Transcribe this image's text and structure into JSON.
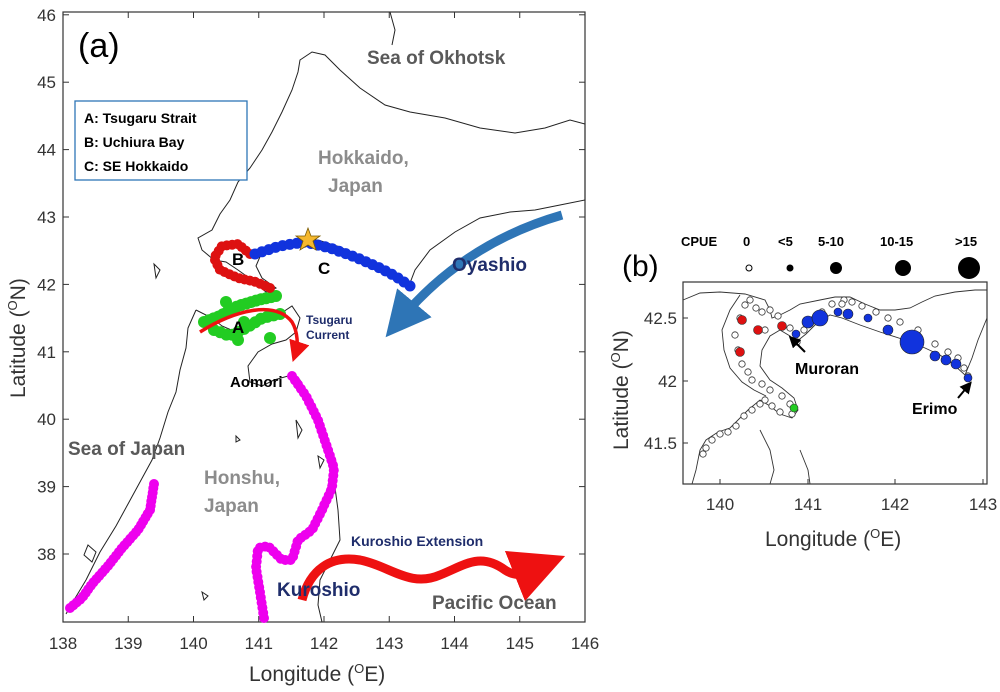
{
  "panel_a": {
    "panel_label": "(a)",
    "legend": {
      "a": "A: Tsugaru Strait",
      "b": "B: Uchiura Bay",
      "c": "C: SE Hokkaido"
    },
    "labels": {
      "sea_okhotsk": "Sea of Okhotsk",
      "hokkaido_1": "Hokkaido,",
      "hokkaido_2": "Japan",
      "oyashio": "Oyashio",
      "tsugaru_1": "Tsugaru",
      "tsugaru_2": "Current",
      "aomori": "Aomori",
      "sea_japan": "Sea of Japan",
      "honshu_1": "Honshu,",
      "honshu_2": "Japan",
      "kuroshio_ext": "Kuroshio Extension",
      "kuroshio": "Kuroshio",
      "pacific": "Pacific Ocean",
      "region_a": "A",
      "region_b": "B",
      "region_c": "C"
    },
    "xlabel": "Longitude (",
    "xlabel_sup": "O",
    "xlabel_end": "E)",
    "ylabel": "Latitude (",
    "ylabel_sup": "O",
    "ylabel_end": "N)",
    "x_ticks": [
      "138",
      "139",
      "140",
      "141",
      "142",
      "143",
      "144",
      "145",
      "146"
    ],
    "y_ticks": [
      "38",
      "39",
      "40",
      "41",
      "42",
      "43",
      "44",
      "45",
      "46"
    ]
  },
  "panel_b": {
    "panel_label": "(b)",
    "cpue_title": "CPUE",
    "cpue_classes": [
      "0",
      "<5",
      "5-10",
      "10-15",
      ">15"
    ],
    "muroran": "Muroran",
    "erimo": "Erimo",
    "xlabel": "Longitude (",
    "xlabel_sup": "O",
    "xlabel_end": "E)",
    "ylabel": "Latitude (",
    "ylabel_sup": "O",
    "ylabel_end": "N)",
    "x_ticks": [
      "140",
      "141",
      "142",
      "143"
    ],
    "y_ticks": [
      "42.5",
      "42",
      "41.5"
    ]
  },
  "colors": {
    "tsugaru": "#22cc22",
    "uchiura": "#dd1111",
    "se_hokkaido": "#1133dd",
    "honshu_track": "#ee00ee",
    "warm_current": "#ee1111",
    "cold_current": "#2e75b6"
  }
}
